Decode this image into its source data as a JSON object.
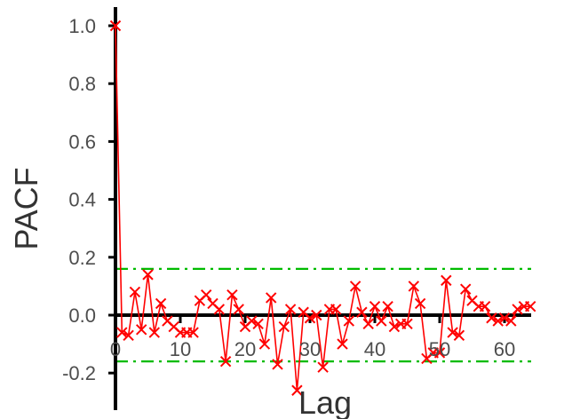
{
  "chart_data": {
    "type": "line",
    "xlabel": "Lag",
    "ylabel": "PACF",
    "xlim": [
      0,
      64
    ],
    "ylim": [
      -0.32,
      1.06
    ],
    "x_ticks": [
      0,
      10,
      20,
      30,
      40,
      50,
      60
    ],
    "y_ticks": [
      -0.2,
      0.0,
      0.2,
      0.4,
      0.6,
      0.8,
      1.0
    ],
    "x_tick_labels": [
      "0",
      "10",
      "20",
      "30",
      "40",
      "50",
      "60"
    ],
    "y_tick_labels": [
      "-0.2",
      "0.0",
      "0.2",
      "0.4",
      "0.6",
      "0.8",
      "1.0"
    ],
    "confidence_bound": 0.16,
    "grid": false,
    "marker": "x",
    "series_color": "#ff0000",
    "bound_color": "#00bb00",
    "axis_color": "#000000",
    "series": [
      {
        "x": [
          0,
          1,
          2,
          3,
          4,
          5,
          6,
          7,
          8,
          9,
          10,
          11,
          12,
          13,
          14,
          15,
          16,
          17,
          18,
          19,
          20,
          21,
          22,
          23,
          24,
          25,
          26,
          27,
          28,
          29,
          30,
          31,
          32,
          33,
          34,
          35,
          36,
          37,
          38,
          39,
          40,
          41,
          42,
          43,
          44,
          45,
          46,
          47,
          48,
          49,
          50,
          51,
          52,
          53,
          54,
          55,
          56,
          57,
          58,
          59,
          60,
          61,
          62,
          63,
          64
        ],
        "values": [
          1.0,
          -0.06,
          -0.07,
          0.08,
          -0.05,
          0.14,
          -0.06,
          0.04,
          -0.02,
          -0.04,
          -0.06,
          -0.06,
          -0.06,
          0.05,
          0.07,
          0.04,
          0.02,
          -0.16,
          0.07,
          0.02,
          -0.04,
          -0.02,
          -0.03,
          -0.1,
          0.06,
          -0.17,
          -0.04,
          0.02,
          -0.26,
          0.01,
          -0.01,
          0.0,
          -0.18,
          0.02,
          0.02,
          -0.1,
          -0.02,
          0.1,
          0.01,
          -0.03,
          0.03,
          -0.02,
          0.03,
          -0.04,
          -0.03,
          -0.03,
          0.1,
          0.04,
          -0.15,
          -0.13,
          -0.13,
          0.12,
          -0.06,
          -0.07,
          0.09,
          0.05,
          0.03,
          0.03,
          -0.01,
          -0.02,
          -0.01,
          -0.02,
          0.02,
          0.03,
          0.03
        ]
      }
    ]
  }
}
